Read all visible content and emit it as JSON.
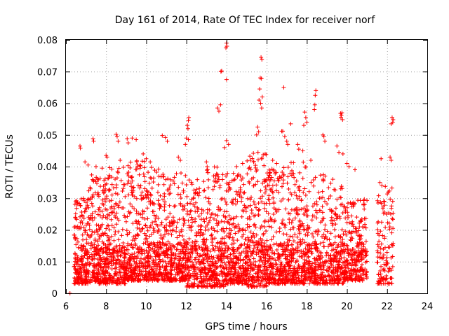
{
  "chart_data": {
    "type": "scatter",
    "title": "Day 161 of 2014, Rate Of TEC Index for receiver norf",
    "xlabel": "GPS time / hours",
    "ylabel": "ROTI / TECUs",
    "xlim": [
      6,
      24
    ],
    "ylim": [
      0,
      0.08
    ],
    "grid": true,
    "marker": "+",
    "color": "#ff0000",
    "x_ticks": [
      6,
      8,
      10,
      12,
      14,
      16,
      18,
      20,
      22,
      24
    ],
    "y_ticks": [
      0,
      0.01,
      0.02,
      0.03,
      0.04,
      0.05,
      0.06,
      0.07,
      0.08
    ],
    "x_tick_labels": [
      "6",
      "8",
      "10",
      "12",
      "14",
      "16",
      "18",
      "20",
      "22",
      "24"
    ],
    "y_tick_labels": [
      "0",
      "0.01",
      "0.02",
      "0.03",
      "0.04",
      "0.05",
      "0.06",
      "0.07",
      "0.08"
    ],
    "series": [
      {
        "name": "ROTI",
        "points": [
          [
            14.0,
            0.079
          ],
          [
            14.02,
            0.078
          ],
          [
            13.97,
            0.0775
          ],
          [
            13.72,
            0.07
          ],
          [
            13.76,
            0.0702
          ],
          [
            14.0,
            0.0675
          ],
          [
            15.72,
            0.0745
          ],
          [
            15.76,
            0.0738
          ],
          [
            15.68,
            0.068
          ],
          [
            15.74,
            0.0678
          ],
          [
            16.85,
            0.065
          ],
          [
            15.65,
            0.0645
          ],
          [
            15.62,
            0.061
          ],
          [
            15.7,
            0.06
          ],
          [
            15.78,
            0.062
          ],
          [
            15.75,
            0.0585
          ],
          [
            18.45,
            0.064
          ],
          [
            18.42,
            0.0625
          ],
          [
            18.4,
            0.0595
          ],
          [
            18.38,
            0.058
          ],
          [
            13.55,
            0.0585
          ],
          [
            13.7,
            0.0595
          ],
          [
            13.62,
            0.0575
          ],
          [
            19.68,
            0.0568
          ],
          [
            19.72,
            0.0562
          ],
          [
            19.75,
            0.057
          ],
          [
            19.7,
            0.0555
          ],
          [
            19.78,
            0.0548
          ],
          [
            17.9,
            0.0572
          ],
          [
            17.95,
            0.0555
          ],
          [
            18.0,
            0.054
          ],
          [
            17.85,
            0.053
          ],
          [
            22.25,
            0.0555
          ],
          [
            22.3,
            0.0548
          ],
          [
            22.2,
            0.0535
          ],
          [
            22.28,
            0.054
          ],
          [
            12.12,
            0.0555
          ],
          [
            12.1,
            0.0545
          ],
          [
            12.05,
            0.053
          ],
          [
            12.08,
            0.052
          ],
          [
            16.75,
            0.0512
          ],
          [
            16.8,
            0.0512
          ],
          [
            17.2,
            0.0535
          ],
          [
            15.55,
            0.0525
          ],
          [
            15.6,
            0.051
          ],
          [
            15.5,
            0.05
          ],
          [
            8.5,
            0.0502
          ],
          [
            8.55,
            0.0495
          ],
          [
            8.6,
            0.048
          ],
          [
            9.05,
            0.0488
          ],
          [
            9.1,
            0.0475
          ],
          [
            9.3,
            0.049
          ],
          [
            9.5,
            0.0485
          ],
          [
            10.8,
            0.0498
          ],
          [
            10.95,
            0.0492
          ],
          [
            11.05,
            0.048
          ],
          [
            12.0,
            0.049
          ],
          [
            12.1,
            0.0485
          ],
          [
            11.95,
            0.047
          ],
          [
            6.7,
            0.0465
          ],
          [
            6.72,
            0.0458
          ],
          [
            7.35,
            0.0488
          ],
          [
            7.38,
            0.048
          ],
          [
            14.0,
            0.0482
          ],
          [
            14.1,
            0.047
          ],
          [
            13.9,
            0.046
          ],
          [
            16.9,
            0.0495
          ],
          [
            17.0,
            0.048
          ],
          [
            17.05,
            0.047
          ],
          [
            18.8,
            0.05
          ],
          [
            18.85,
            0.0495
          ],
          [
            18.9,
            0.048
          ],
          [
            17.55,
            0.047
          ],
          [
            17.6,
            0.0455
          ],
          [
            17.8,
            0.045
          ],
          [
            19.5,
            0.0465
          ],
          [
            19.6,
            0.0445
          ],
          [
            19.8,
            0.044
          ],
          [
            22.15,
            0.043
          ],
          [
            22.2,
            0.042
          ],
          [
            21.7,
            0.0425
          ],
          [
            8.0,
            0.0435
          ],
          [
            8.05,
            0.043
          ],
          [
            8.7,
            0.042
          ],
          [
            6.2,
            0.0
          ],
          [
            9.85,
            0.044
          ],
          [
            10.0,
            0.0425
          ],
          [
            10.2,
            0.0415
          ],
          [
            11.6,
            0.043
          ],
          [
            11.7,
            0.042
          ],
          [
            13.0,
            0.0415
          ],
          [
            14.8,
            0.041
          ],
          [
            14.5,
            0.04
          ],
          [
            15.2,
            0.042
          ],
          [
            16.3,
            0.042
          ],
          [
            16.5,
            0.041
          ],
          [
            18.2,
            0.042
          ],
          [
            20.0,
            0.041
          ],
          [
            20.1,
            0.04
          ],
          [
            20.4,
            0.039
          ],
          [
            6.95,
            0.0415
          ],
          [
            7.1,
            0.0405
          ],
          [
            7.5,
            0.04
          ],
          [
            7.8,
            0.0395
          ]
        ]
      }
    ],
    "dense_clusters": [
      {
        "x_range": [
          6.4,
          7.1
        ],
        "y_range": [
          0.003,
          0.03
        ],
        "count": 140
      },
      {
        "x_range": [
          7.1,
          8.0
        ],
        "y_range": [
          0.003,
          0.038
        ],
        "count": 200
      },
      {
        "x_range": [
          8.0,
          9.0
        ],
        "y_range": [
          0.003,
          0.04
        ],
        "count": 180
      },
      {
        "x_range": [
          9.0,
          10.0
        ],
        "y_range": [
          0.004,
          0.042
        ],
        "count": 200
      },
      {
        "x_range": [
          10.0,
          11.0
        ],
        "y_range": [
          0.004,
          0.04
        ],
        "count": 200
      },
      {
        "x_range": [
          11.0,
          12.0
        ],
        "y_range": [
          0.004,
          0.038
        ],
        "count": 190
      },
      {
        "x_range": [
          12.0,
          13.0
        ],
        "y_range": [
          0.002,
          0.036
        ],
        "count": 190
      },
      {
        "x_range": [
          13.0,
          14.0
        ],
        "y_range": [
          0.002,
          0.04
        ],
        "count": 200
      },
      {
        "x_range": [
          14.0,
          15.0
        ],
        "y_range": [
          0.003,
          0.038
        ],
        "count": 190
      },
      {
        "x_range": [
          15.0,
          16.0
        ],
        "y_range": [
          0.002,
          0.045
        ],
        "count": 210
      },
      {
        "x_range": [
          16.0,
          17.0
        ],
        "y_range": [
          0.003,
          0.04
        ],
        "count": 190
      },
      {
        "x_range": [
          17.0,
          18.0
        ],
        "y_range": [
          0.003,
          0.042
        ],
        "count": 200
      },
      {
        "x_range": [
          18.0,
          19.0
        ],
        "y_range": [
          0.003,
          0.038
        ],
        "count": 180
      },
      {
        "x_range": [
          19.0,
          20.0
        ],
        "y_range": [
          0.003,
          0.036
        ],
        "count": 170
      },
      {
        "x_range": [
          20.0,
          21.0
        ],
        "y_range": [
          0.004,
          0.03
        ],
        "count": 150
      },
      {
        "x_range": [
          21.5,
          22.3
        ],
        "y_range": [
          0.003,
          0.035
        ],
        "count": 130
      }
    ],
    "dense_core": {
      "y_range": [
        0.004,
        0.016
      ],
      "count": 1200,
      "x_range": [
        6.4,
        21.0
      ]
    }
  }
}
